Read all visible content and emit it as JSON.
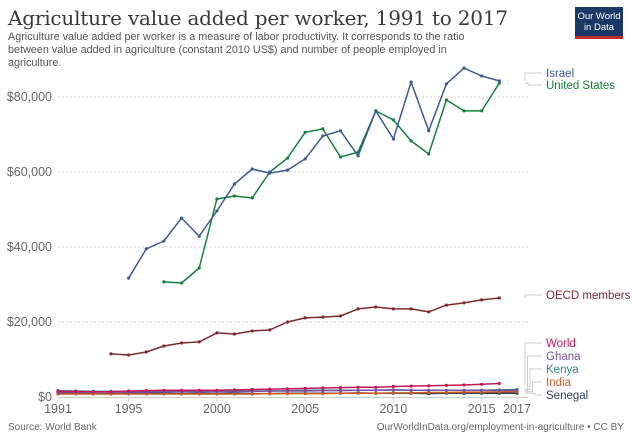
{
  "header": {
    "title": "Agriculture value added per worker, 1991 to 2017",
    "subtitle": "Agriculture value added per worker is a measure of labor productivity. It corresponds to the ratio between value added in agriculture (constant 2010 US$) and number of people employed in agriculture.",
    "logo_line1": "Our World",
    "logo_line2": "in Data",
    "logo_colors": {
      "background": "#1a3766",
      "accent": "#c0292e"
    }
  },
  "footer": {
    "source": "Source: World Bank",
    "url_license": "OurWorldInData.org/employment-in-agriculture • CC BY"
  },
  "chart_data": {
    "type": "line",
    "title": "Agriculture value added per worker, 1991 to 2017",
    "xlabel": "",
    "ylabel": "",
    "xlim": [
      1991,
      2017
    ],
    "ylim": [
      0,
      90000
    ],
    "grid": true,
    "legend_position": "right",
    "x_ticks": [
      1991,
      1995,
      2000,
      2005,
      2010,
      2015,
      2017
    ],
    "x_tick_labels": [
      "1991",
      "1995",
      "2000",
      "2005",
      "2010",
      "2015",
      "2017"
    ],
    "y_ticks": [
      0,
      20000,
      40000,
      60000,
      80000
    ],
    "y_tick_labels": [
      "$0",
      "$20,000",
      "$40,000",
      "$60,000",
      "$80,000"
    ],
    "series": [
      {
        "name": "Israel",
        "color": "#3c5a94",
        "points": [
          [
            1995,
            31700
          ],
          [
            1996,
            39500
          ],
          [
            1997,
            41600
          ],
          [
            1998,
            47700
          ],
          [
            1999,
            42900
          ],
          [
            2000,
            49600
          ],
          [
            2001,
            56800
          ],
          [
            2002,
            60800
          ],
          [
            2003,
            59700
          ],
          [
            2004,
            60500
          ],
          [
            2005,
            63500
          ],
          [
            2006,
            69600
          ],
          [
            2007,
            71000
          ],
          [
            2008,
            64300
          ],
          [
            2009,
            76300
          ],
          [
            2010,
            68800
          ],
          [
            2011,
            84000
          ],
          [
            2012,
            71000
          ],
          [
            2013,
            83500
          ],
          [
            2014,
            87700
          ],
          [
            2015,
            85600
          ],
          [
            2016,
            84300
          ]
        ]
      },
      {
        "name": "United States",
        "color": "#16803c",
        "points": [
          [
            1997,
            30700
          ],
          [
            1998,
            30400
          ],
          [
            1999,
            34400
          ],
          [
            2000,
            52800
          ],
          [
            2001,
            53600
          ],
          [
            2002,
            53100
          ],
          [
            2003,
            60000
          ],
          [
            2004,
            63700
          ],
          [
            2005,
            70600
          ],
          [
            2006,
            71500
          ],
          [
            2007,
            64000
          ],
          [
            2008,
            65300
          ],
          [
            2009,
            76300
          ],
          [
            2010,
            73900
          ],
          [
            2011,
            68300
          ],
          [
            2012,
            64800
          ],
          [
            2013,
            79200
          ],
          [
            2014,
            76300
          ],
          [
            2015,
            76300
          ],
          [
            2016,
            83700
          ]
        ]
      },
      {
        "name": "OECD members",
        "color": "#7d2a30",
        "points": [
          [
            1994,
            11500
          ],
          [
            1995,
            11200
          ],
          [
            1996,
            12000
          ],
          [
            1997,
            13600
          ],
          [
            1998,
            14400
          ],
          [
            1999,
            14700
          ],
          [
            2000,
            17100
          ],
          [
            2001,
            16800
          ],
          [
            2002,
            17600
          ],
          [
            2003,
            17900
          ],
          [
            2004,
            20000
          ],
          [
            2005,
            21100
          ],
          [
            2006,
            21300
          ],
          [
            2007,
            21600
          ],
          [
            2008,
            23500
          ],
          [
            2009,
            24000
          ],
          [
            2010,
            23500
          ],
          [
            2011,
            23500
          ],
          [
            2012,
            22700
          ],
          [
            2013,
            24500
          ],
          [
            2014,
            25100
          ],
          [
            2015,
            25900
          ],
          [
            2016,
            26400
          ]
        ]
      },
      {
        "name": "World",
        "color": "#c2185b",
        "points": [
          [
            1991,
            1500
          ],
          [
            1992,
            1500
          ],
          [
            1993,
            1400
          ],
          [
            1994,
            1400
          ],
          [
            1995,
            1600
          ],
          [
            1996,
            1700
          ],
          [
            1997,
            1800
          ],
          [
            1998,
            1800
          ],
          [
            1999,
            1800
          ],
          [
            2000,
            1800
          ],
          [
            2001,
            1900
          ],
          [
            2002,
            2000
          ],
          [
            2003,
            2100
          ],
          [
            2004,
            2200
          ],
          [
            2005,
            2300
          ],
          [
            2006,
            2400
          ],
          [
            2007,
            2500
          ],
          [
            2008,
            2600
          ],
          [
            2009,
            2600
          ],
          [
            2010,
            2800
          ],
          [
            2011,
            2900
          ],
          [
            2012,
            3000
          ],
          [
            2013,
            3100
          ],
          [
            2014,
            3200
          ],
          [
            2015,
            3400
          ],
          [
            2016,
            3600
          ]
        ]
      },
      {
        "name": "Ghana",
        "color": "#7b52a0",
        "points": [
          [
            1991,
            1300
          ],
          [
            1992,
            1300
          ],
          [
            1993,
            1300
          ],
          [
            1994,
            1300
          ],
          [
            1995,
            1300
          ],
          [
            1996,
            1300
          ],
          [
            1997,
            1400
          ],
          [
            1998,
            1400
          ],
          [
            1999,
            1400
          ],
          [
            2000,
            1400
          ],
          [
            2001,
            1400
          ],
          [
            2002,
            1500
          ],
          [
            2003,
            1600
          ],
          [
            2004,
            1600
          ],
          [
            2005,
            1600
          ],
          [
            2006,
            1700
          ],
          [
            2007,
            1700
          ],
          [
            2008,
            1800
          ],
          [
            2009,
            1800
          ],
          [
            2010,
            1900
          ],
          [
            2011,
            1800
          ],
          [
            2012,
            1800
          ],
          [
            2013,
            1800
          ],
          [
            2014,
            1800
          ],
          [
            2015,
            1800
          ],
          [
            2016,
            1800
          ],
          [
            2017,
            1800
          ]
        ]
      },
      {
        "name": "Kenya",
        "color": "#2a8a85",
        "points": [
          [
            1991,
            1700
          ],
          [
            1992,
            1600
          ],
          [
            1993,
            1500
          ],
          [
            1994,
            1500
          ],
          [
            1995,
            1500
          ],
          [
            1996,
            1500
          ],
          [
            1997,
            1500
          ],
          [
            1998,
            1500
          ],
          [
            1999,
            1500
          ],
          [
            2000,
            1500
          ],
          [
            2001,
            1600
          ],
          [
            2002,
            1600
          ],
          [
            2003,
            1600
          ],
          [
            2004,
            1700
          ],
          [
            2005,
            1800
          ],
          [
            2006,
            1800
          ],
          [
            2007,
            1800
          ],
          [
            2008,
            1800
          ],
          [
            2009,
            1800
          ],
          [
            2010,
            1900
          ],
          [
            2011,
            1800
          ],
          [
            2012,
            1800
          ],
          [
            2013,
            1800
          ],
          [
            2014,
            1800
          ],
          [
            2015,
            1800
          ],
          [
            2016,
            1900
          ],
          [
            2017,
            2000
          ]
        ]
      },
      {
        "name": "India",
        "color": "#c75f2a",
        "points": [
          [
            1991,
            800
          ],
          [
            1992,
            800
          ],
          [
            1993,
            800
          ],
          [
            1994,
            800
          ],
          [
            1995,
            800
          ],
          [
            1996,
            800
          ],
          [
            1997,
            800
          ],
          [
            1998,
            800
          ],
          [
            1999,
            800
          ],
          [
            2000,
            800
          ],
          [
            2001,
            800
          ],
          [
            2002,
            800
          ],
          [
            2003,
            900
          ],
          [
            2004,
            900
          ],
          [
            2005,
            900
          ],
          [
            2006,
            900
          ],
          [
            2007,
            1000
          ],
          [
            2008,
            1000
          ],
          [
            2009,
            1000
          ],
          [
            2010,
            1100
          ],
          [
            2011,
            1100
          ],
          [
            2012,
            1200
          ],
          [
            2013,
            1200
          ],
          [
            2014,
            1300
          ],
          [
            2015,
            1300
          ],
          [
            2016,
            1400
          ],
          [
            2017,
            1400
          ]
        ]
      },
      {
        "name": "Senegal",
        "color": "#2e3f52",
        "points": [
          [
            1991,
            1000
          ],
          [
            1992,
            1000
          ],
          [
            1993,
            900
          ],
          [
            1994,
            900
          ],
          [
            1995,
            1000
          ],
          [
            1996,
            1000
          ],
          [
            1997,
            1000
          ],
          [
            1998,
            900
          ],
          [
            1999,
            1000
          ],
          [
            2000,
            900
          ],
          [
            2001,
            1000
          ],
          [
            2002,
            900
          ],
          [
            2003,
            900
          ],
          [
            2004,
            1000
          ],
          [
            2005,
            1000
          ],
          [
            2006,
            1000
          ],
          [
            2007,
            1000
          ],
          [
            2008,
            1100
          ],
          [
            2009,
            1000
          ],
          [
            2010,
            1000
          ],
          [
            2011,
            1000
          ],
          [
            2012,
            900
          ],
          [
            2013,
            1000
          ],
          [
            2014,
            1000
          ],
          [
            2015,
            1000
          ],
          [
            2016,
            1000
          ],
          [
            2017,
            1000
          ]
        ]
      }
    ]
  }
}
